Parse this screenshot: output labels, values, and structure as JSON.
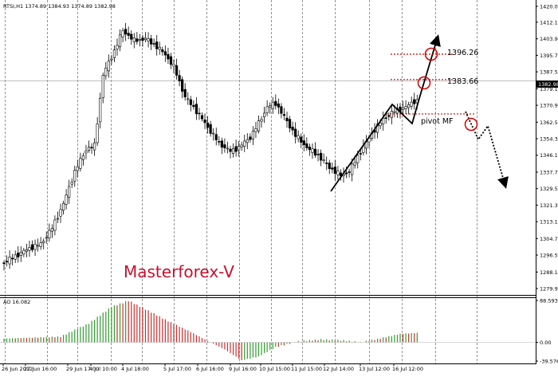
{
  "chart_data": {
    "type": "candlestick",
    "header_text": "RTSI,H1  1374.89 1384.93 1374.89 1382.98",
    "watermark": "Masterforex-V",
    "colors": {
      "candle_up": "#ffffff",
      "candle_down": "#000000",
      "ao_up": "#2e9e2e",
      "ao_down": "#d42a2a",
      "pivot_line": "#d40000",
      "grid": "#7a7a7a",
      "watermark": "#c8102e"
    },
    "price_axis": {
      "ticks": [
        "1420.00",
        "1412.15",
        "1403.90",
        "1395.70",
        "1387.50",
        "1379.10",
        "1370.90",
        "1362.50",
        "1354.30",
        "1346.10",
        "1337.70",
        "1329.50",
        "1321.30",
        "1313.10",
        "1304.70",
        "1296.50",
        "1288.10",
        "1279.90"
      ],
      "current_price": "1382.98",
      "ylim": [
        1279.9,
        1420.0
      ]
    },
    "ao": {
      "label": "AO 16.082",
      "ticks": [
        "88.593",
        "0.00",
        "-39.576"
      ],
      "ylim": [
        -39.576,
        88.593
      ]
    },
    "time_axis": {
      "labels": [
        "26 Jun 2012",
        "27 Jun 16:00",
        "29 Jun 17:00",
        "4 Jul 10:00",
        "4 Jul 18:00",
        "5 Jul 17:00",
        "6 Jul 16:00",
        "9 Jul 16:00",
        "10 Jul 15:00",
        "11 Jul 15:00",
        "12 Jul 14:00",
        "13 Jul 12:00",
        "16 Jul 12:00"
      ]
    },
    "annotations": {
      "levels": [
        {
          "label": "1396.26",
          "price": 1396.26
        },
        {
          "label": "1383.66",
          "price": 1383.66
        },
        {
          "label": "pivot MF",
          "price": 1366.6
        }
      ]
    }
  }
}
